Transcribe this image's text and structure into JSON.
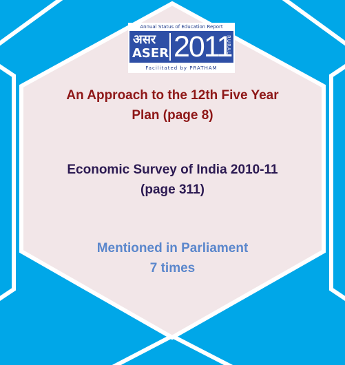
{
  "colors": {
    "background": "#00a7e8",
    "panel": "#f2e6e8",
    "lines": "#ffffff",
    "plan_text": "#8e1717",
    "survey_text": "#2c1a52",
    "parliament_text": "#5b87cc"
  },
  "logo": {
    "top_text": "Annual Status of Education Report",
    "hindi_text": "असर",
    "acronym": "ASER",
    "year": "2011",
    "side_text": "RURAL",
    "bottom_text": "Facilitated by PRATHAM"
  },
  "references": [
    {
      "lines": [
        "An Approach to the 12th Five Year",
        "Plan (page 8)"
      ]
    },
    {
      "lines": [
        "Economic Survey of India 2010-11",
        "(page 311)"
      ]
    },
    {
      "lines": [
        "Mentioned in Parliament",
        "7 times"
      ]
    }
  ]
}
